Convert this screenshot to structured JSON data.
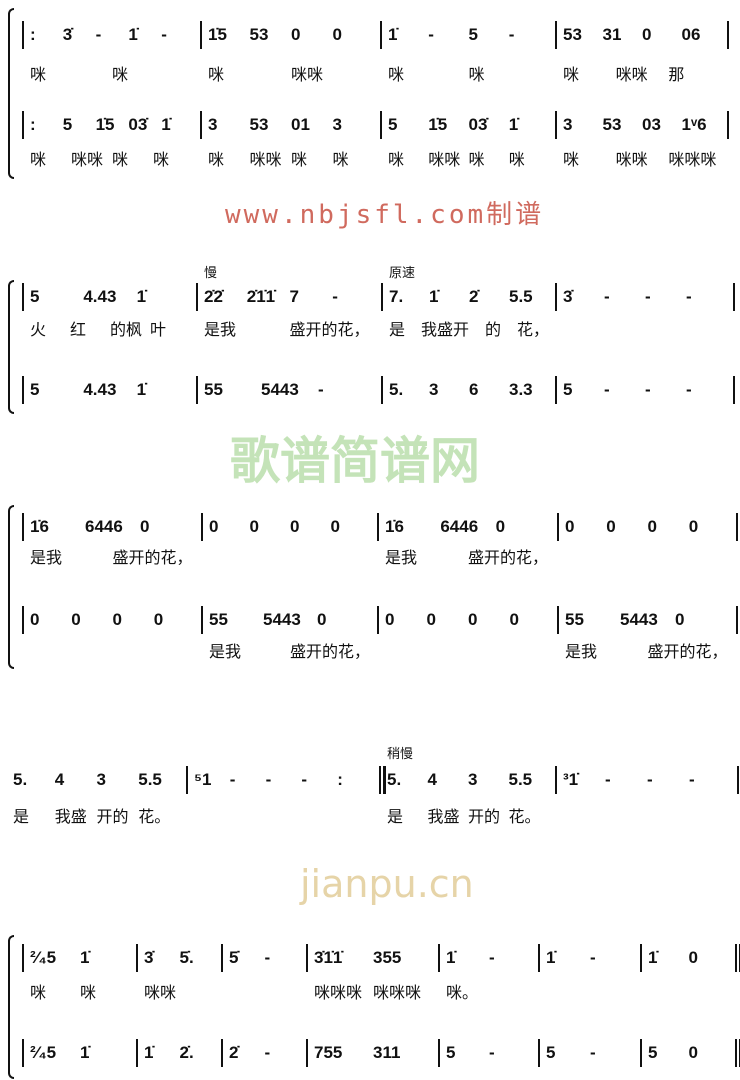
{
  "watermark": {
    "logo": "歌谱简谱网",
    "site": "www.nbjsfl.com制谱",
    "site2": "jianpu.cn"
  },
  "systems": [
    {
      "tempo": [],
      "rows": [
        {
          "type": "notes",
          "measures": [
            ": 3̇ - 1̇ -",
            "1̇5 53 0 0",
            "1̇ - 5 -",
            "53 31 0 06"
          ]
        },
        {
          "type": "lyrics",
          "measures": [
            "咪 咪",
            "咪 咪咪",
            "咪 咪",
            "咪 咪咪 那"
          ]
        },
        {
          "type": "notes",
          "measures": [
            ": 5 1̇5 03̇ 1̇",
            "3 53 01 3",
            "5 1̇5 03̇ 1̇",
            "3 53 03 1ᵛ6"
          ]
        },
        {
          "type": "lyrics",
          "measures": [
            "咪 咪咪 咪 咪",
            "咪 咪咪 咪 咪",
            "咪 咪咪 咪 咪",
            "咪 咪咪 咪咪咪"
          ]
        }
      ]
    },
    {
      "tempo": [
        {
          "text": "慢",
          "measure": 1
        },
        {
          "text": "原速",
          "measure": 2
        }
      ],
      "rows": [
        {
          "type": "notes",
          "measures": [
            "5 4.43 1̇",
            "2̇2̇ 2̇1̇1̇ 7 -",
            "7. 1̇ 2̇ 5.5",
            "3̇ - - -"
          ]
        },
        {
          "type": "lyrics",
          "measures": [
            "火 红 的枫 叶",
            "是我 盛开的花，",
            "是 我盛 开 的 花，",
            ""
          ]
        },
        {
          "type": "notes",
          "measures": [
            "5 4.43 1̇",
            "55 5443 -",
            "5. 3 6 3.3",
            "5 - - -"
          ]
        }
      ]
    },
    {
      "tempo": [],
      "rows": [
        {
          "type": "notes",
          "measures": [
            "1̇6 6446 0",
            "0 0 0 0",
            "1̇6 6446 0",
            "0 0 0 0"
          ]
        },
        {
          "type": "lyrics",
          "measures": [
            "是我 盛开的花，",
            "",
            "是我 盛开的花，",
            ""
          ]
        },
        {
          "type": "notes",
          "measures": [
            "0 0 0 0",
            "55 5443 0",
            "0 0 0 0",
            "55 5443 0"
          ]
        },
        {
          "type": "lyrics",
          "measures": [
            "",
            "是我 盛开的花，",
            "",
            "是我 盛开的花，"
          ]
        }
      ]
    },
    {
      "tempo": [
        {
          "text": "稍慢",
          "measure": 2
        }
      ],
      "rows": [
        {
          "type": "notes",
          "measures": [
            "5. 4 3 5.5",
            "⁵1 - - - :",
            "5. 4 3 5.5",
            "³1̇ - - -"
          ]
        },
        {
          "type": "lyrics",
          "measures": [
            "是 我盛 开的 花。",
            "",
            "是 我盛 开的 花。",
            ""
          ]
        }
      ]
    },
    {
      "tempo": [],
      "rows": [
        {
          "type": "notes",
          "measures": [
            "²⁄₄5 1̇",
            "3̇ 5̇.",
            "5̇ -",
            "3̇1̇1̇ 355",
            "1̇ -",
            "1̇ -",
            "1̇ 0"
          ]
        },
        {
          "type": "lyrics",
          "measures": [
            "咪 咪",
            "咪咪",
            "",
            "咪咪咪 咪咪咪",
            "咪。",
            "",
            ""
          ]
        },
        {
          "type": "notes",
          "measures": [
            "²⁄₄5 1̇",
            "1̇ 2̇.",
            "2̇ -",
            "755 311",
            "5 -",
            "5 -",
            "5 0"
          ]
        }
      ]
    }
  ]
}
